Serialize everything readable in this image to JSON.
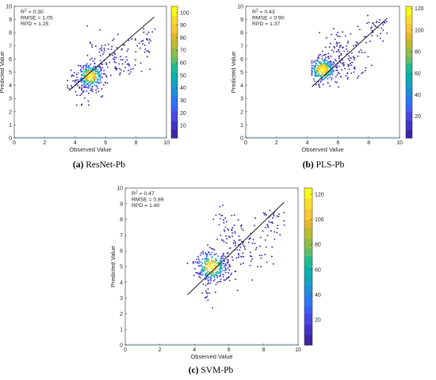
{
  "colors": {
    "colormap": [
      "#3e26a8",
      "#4433c8",
      "#4a47e6",
      "#3f5ef7",
      "#2a78f6",
      "#1f8ed8",
      "#12a3c6",
      "#07b1b0",
      "#21bb92",
      "#5bbf6d",
      "#8fbe48",
      "#bfba2f",
      "#e5b82b",
      "#fcc636",
      "#f7dd2a",
      "#f9fb15"
    ],
    "fit_line": "#000000",
    "baseline": "#0072bd"
  },
  "chart_data": [
    {
      "id": "a",
      "type": "scatter",
      "caption_letter": "(a)",
      "caption_text": "ResNet-Pb",
      "xlabel": "Observed Value",
      "ylabel": "Predicted Value",
      "xlim": [
        0,
        10
      ],
      "ylim": [
        0,
        10
      ],
      "xticks": [
        "0",
        "2",
        "4",
        "6",
        "8",
        "10"
      ],
      "yticks": [
        "0",
        "1",
        "2",
        "3",
        "4",
        "5",
        "6",
        "7",
        "8",
        "9",
        "10"
      ],
      "stats": {
        "r2": "R² = 0.30",
        "rmse": "RMSE = 1.05",
        "rpd": "RPD = 1.25"
      },
      "colorbar": {
        "min": 0,
        "max": 105,
        "ticks": [
          "10",
          "20",
          "30",
          "40",
          "50",
          "60",
          "70",
          "80",
          "90",
          "100"
        ]
      },
      "fit_line": {
        "x": [
          3.6,
          9.2
        ],
        "y": [
          3.6,
          9.2
        ]
      },
      "density_center": [
        5.0,
        4.7
      ],
      "points": {
        "clusters": [
          {
            "cx": 5.0,
            "cy": 4.7,
            "sx": 0.45,
            "sy": 0.5,
            "n": 260
          },
          {
            "cx": 6.4,
            "cy": 5.9,
            "sx": 0.9,
            "sy": 0.9,
            "n": 110
          },
          {
            "cx": 4.4,
            "cy": 4.0,
            "sx": 0.6,
            "sy": 0.7,
            "n": 50
          },
          {
            "cx": 8.5,
            "cy": 7.5,
            "sx": 0.5,
            "sy": 0.6,
            "n": 30
          }
        ],
        "x_range": [
          3.5,
          9.3
        ],
        "y_range": [
          2.5,
          8.8
        ],
        "seed": 11
      }
    },
    {
      "id": "b",
      "type": "scatter",
      "caption_letter": "(b)",
      "caption_text": "PLS-Pb",
      "xlabel": "Observed Value",
      "ylabel": "Predicted Value",
      "xlim": [
        0,
        10
      ],
      "ylim": [
        0,
        10
      ],
      "xticks": [
        "0",
        "2",
        "4",
        "6",
        "8",
        "10"
      ],
      "yticks": [
        "0",
        "1",
        "2",
        "3",
        "4",
        "5",
        "6",
        "7",
        "8",
        "9",
        "10"
      ],
      "stats": {
        "r2": "R² = 0.43",
        "rmse": "RMSE = 0.90",
        "rpd": "RPD = 1.37"
      },
      "colorbar": {
        "min": 0,
        "max": 122,
        "ticks": [
          "20",
          "40",
          "60",
          "80",
          "100",
          "120"
        ]
      },
      "fit_line": {
        "x": [
          4.3,
          9.2
        ],
        "y": [
          3.9,
          9.1
        ]
      },
      "density_center": [
        5.0,
        5.2
      ],
      "points": {
        "clusters": [
          {
            "cx": 5.0,
            "cy": 5.2,
            "sx": 0.4,
            "sy": 0.45,
            "n": 280
          },
          {
            "cx": 6.3,
            "cy": 5.8,
            "sx": 0.8,
            "sy": 0.8,
            "n": 110
          },
          {
            "cx": 5.8,
            "cy": 7.5,
            "sx": 0.6,
            "sy": 0.6,
            "n": 25
          },
          {
            "cx": 8.4,
            "cy": 8.3,
            "sx": 0.5,
            "sy": 0.6,
            "n": 35
          }
        ],
        "x_range": [
          4.3,
          9.2
        ],
        "y_range": [
          2.9,
          9.3
        ],
        "seed": 23
      }
    },
    {
      "id": "c",
      "type": "scatter",
      "caption_letter": "(c)",
      "caption_text": "SVM-Pb",
      "xlabel": "Observed Value",
      "ylabel": "Predicted Value",
      "xlim": [
        0,
        10
      ],
      "ylim": [
        0,
        10
      ],
      "xticks": [
        "0",
        "2",
        "4",
        "6",
        "8",
        "10"
      ],
      "yticks": [
        "0",
        "1",
        "2",
        "3",
        "4",
        "5",
        "6",
        "7",
        "8",
        "9",
        "10"
      ],
      "stats": {
        "r2": "R² = 0.47",
        "rmse": "RMSE = 0.89",
        "rpd": "RPD = 1.40"
      },
      "colorbar": {
        "min": 0,
        "max": 125,
        "ticks": [
          "20",
          "40",
          "60",
          "80",
          "100",
          "120"
        ]
      },
      "fit_line": {
        "x": [
          3.6,
          9.2
        ],
        "y": [
          3.2,
          9.1
        ]
      },
      "density_center": [
        5.0,
        5.0
      ],
      "points": {
        "clusters": [
          {
            "cx": 5.0,
            "cy": 5.0,
            "sx": 0.45,
            "sy": 0.5,
            "n": 280
          },
          {
            "cx": 6.5,
            "cy": 6.0,
            "sx": 0.9,
            "sy": 0.9,
            "n": 120
          },
          {
            "cx": 5.8,
            "cy": 8.0,
            "sx": 0.5,
            "sy": 0.8,
            "n": 25
          },
          {
            "cx": 8.6,
            "cy": 8.0,
            "sx": 0.4,
            "sy": 0.6,
            "n": 35
          },
          {
            "cx": 4.7,
            "cy": 3.2,
            "sx": 0.2,
            "sy": 0.4,
            "n": 12
          }
        ],
        "x_range": [
          3.6,
          9.2
        ],
        "y_range": [
          2.2,
          9.6
        ],
        "seed": 37
      }
    }
  ]
}
